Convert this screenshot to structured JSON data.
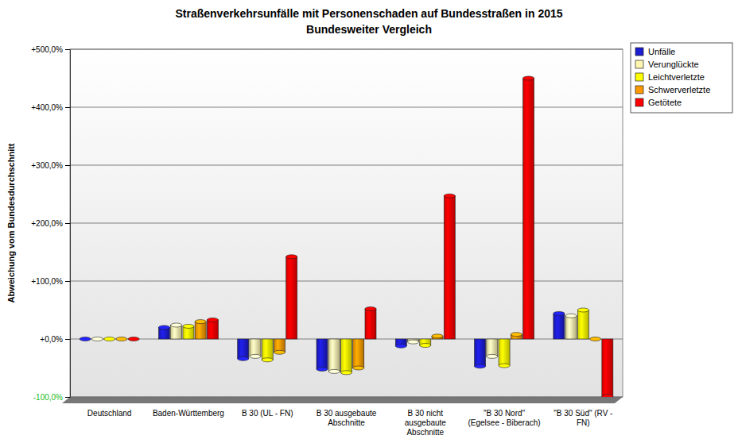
{
  "chart_data": {
    "type": "bar",
    "title": "Straßenverkehrsunfälle mit Personenschaden auf Bundesstraßen in 2015",
    "subtitle": "Bundesweiter Vergleich",
    "y_label": "Abweichung vom Bundesdurchschnitt",
    "categories": [
      "Deutschland",
      "Baden-Württemberg",
      "B 30 (UL - FN)",
      "B 30 ausgebaute Abschnitte",
      "B 30 nicht ausgebaute Abschnitte",
      "\"B 30 Nord\" (Egelsee - Biberach)",
      "\"B 30 Süd\" (RV - FN)"
    ],
    "series": [
      {
        "name": "Unfälle",
        "color": "#1c1cd0",
        "values": [
          0,
          20,
          -34,
          -52,
          -12,
          -47,
          44
        ]
      },
      {
        "name": "Verunglückte",
        "color": "#fff6b0",
        "values": [
          0,
          24,
          -30,
          -56,
          -5,
          -30,
          40
        ]
      },
      {
        "name": "Leichtverletzte",
        "color": "#ffff00",
        "values": [
          0,
          22,
          -36,
          -58,
          -11,
          -46,
          50
        ]
      },
      {
        "name": "Schwerverletzte",
        "color": "#ff9900",
        "values": [
          0,
          30,
          -23,
          -50,
          5,
          8,
          0
        ]
      },
      {
        "name": "Getötete",
        "color": "#ff0000",
        "values": [
          0,
          33,
          142,
          52,
          247,
          450,
          -99
        ]
      }
    ],
    "ylim": [
      -100,
      500
    ],
    "yticks": [
      {
        "value": -100,
        "label": "-100,0%"
      },
      {
        "value": 0,
        "label": "+0,0%"
      },
      {
        "value": 100,
        "label": "+100,0%"
      },
      {
        "value": 200,
        "label": "+200,0%"
      },
      {
        "value": 300,
        "label": "+300,0%"
      },
      {
        "value": 400,
        "label": "+400,0%"
      },
      {
        "value": 500,
        "label": "+500,0%"
      }
    ],
    "grid": true,
    "legend": "top-right"
  }
}
